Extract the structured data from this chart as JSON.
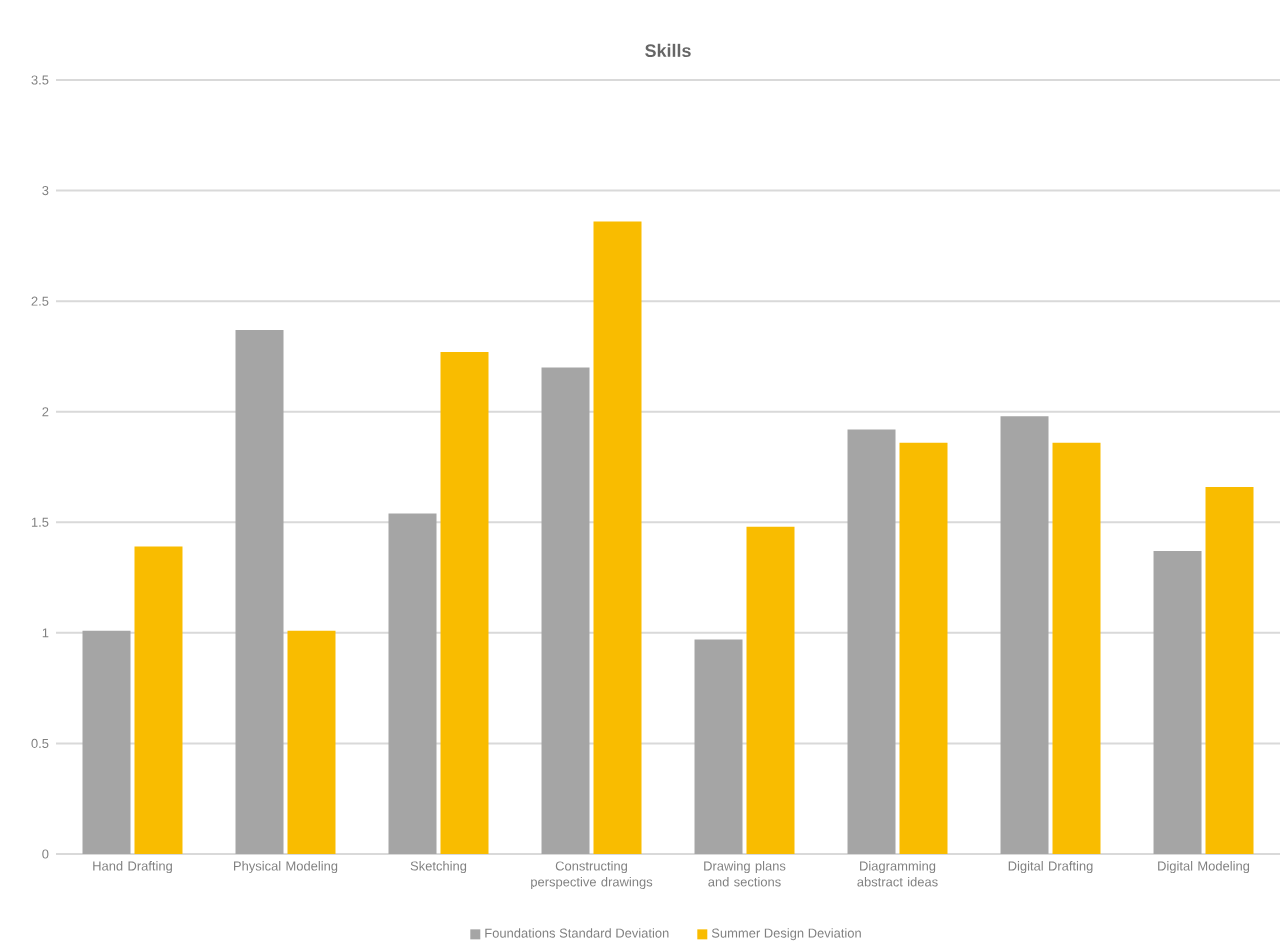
{
  "chart_data": {
    "type": "bar",
    "title": "Skills",
    "categories": [
      "Hand Drafting",
      "Physical Modeling",
      "Sketching",
      "Constructing perspective drawings",
      "Drawing plans and sections",
      "Diagramming abstract ideas",
      "Digital Drafting",
      "Digital Modeling"
    ],
    "series": [
      {
        "name": "Foundations Standard Deviation",
        "color": "#a5a5a5",
        "values": [
          1.01,
          2.37,
          1.54,
          2.2,
          0.97,
          1.92,
          1.98,
          1.37
        ]
      },
      {
        "name": "Summer Design Deviation",
        "color": "#f9bc00",
        "values": [
          1.39,
          1.01,
          2.27,
          2.86,
          1.48,
          1.86,
          1.86,
          1.66
        ]
      }
    ],
    "ylim": [
      0,
      3.5
    ],
    "yticks": [
      0,
      0.5,
      1,
      1.5,
      2,
      2.5,
      3,
      3.5
    ],
    "grid": "y",
    "legend": "bottom"
  }
}
